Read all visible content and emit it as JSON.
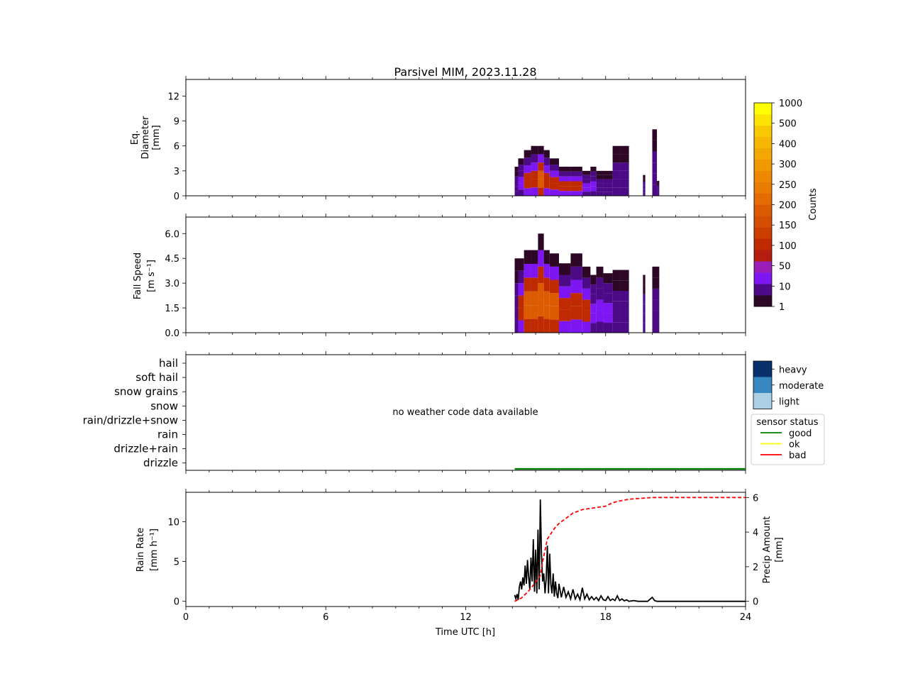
{
  "title": "Parsivel MIM, 2023.11.28",
  "no_data_text": "no weather code data available",
  "chart_data": [
    {
      "type": "heatmap",
      "ylabel": [
        "Eq.",
        "Diameter",
        "[mm]"
      ],
      "yticks": [
        "0",
        "3",
        "6",
        "9",
        "12"
      ],
      "ylim": [
        0,
        14
      ],
      "xlim": [
        0,
        24
      ],
      "columns": [
        {
          "start": 14.1,
          "end": 14.25,
          "top": 3.5,
          "level": 1
        },
        {
          "start": 14.25,
          "end": 14.5,
          "top": 4.5,
          "level": 2
        },
        {
          "start": 14.5,
          "end": 14.8,
          "top": 5.5,
          "level": 3
        },
        {
          "start": 14.8,
          "end": 15.1,
          "top": 6.0,
          "level": 3
        },
        {
          "start": 15.1,
          "end": 15.35,
          "top": 6.0,
          "level": 4
        },
        {
          "start": 15.35,
          "end": 15.6,
          "top": 5.5,
          "level": 3
        },
        {
          "start": 15.6,
          "end": 16.0,
          "top": 4.5,
          "level": 3
        },
        {
          "start": 16.0,
          "end": 16.5,
          "top": 3.5,
          "level": 3
        },
        {
          "start": 16.5,
          "end": 17.0,
          "top": 3.5,
          "level": 3
        },
        {
          "start": 17.0,
          "end": 17.35,
          "top": 3.0,
          "level": 2
        },
        {
          "start": 17.35,
          "end": 17.6,
          "top": 3.5,
          "level": 2
        },
        {
          "start": 17.6,
          "end": 17.9,
          "top": 3.0,
          "level": 1
        },
        {
          "start": 17.9,
          "end": 18.3,
          "top": 3.0,
          "level": 1
        },
        {
          "start": 18.3,
          "end": 18.6,
          "top": 6.0,
          "level": 1
        },
        {
          "start": 18.6,
          "end": 19.0,
          "top": 6.0,
          "level": 1
        },
        {
          "start": 19.6,
          "end": 19.7,
          "top": 2.5,
          "level": 1
        },
        {
          "start": 20.0,
          "end": 20.2,
          "top": 8.0,
          "level": 1
        },
        {
          "start": 20.2,
          "end": 20.3,
          "top": 1.8,
          "level": 1
        }
      ]
    },
    {
      "type": "heatmap",
      "ylabel": [
        "Fall Speed",
        "[m s⁻¹]"
      ],
      "yticks": [
        "0.0",
        "1.5",
        "3.0",
        "4.5",
        "6.0"
      ],
      "ylim": [
        0,
        7
      ],
      "xlim": [
        0,
        24
      ],
      "columns": [
        {
          "start": 14.1,
          "end": 14.25,
          "top": 4.5,
          "level": 1
        },
        {
          "start": 14.25,
          "end": 14.5,
          "top": 4.5,
          "level": 3
        },
        {
          "start": 14.5,
          "end": 14.8,
          "top": 5.0,
          "level": 4
        },
        {
          "start": 14.8,
          "end": 15.1,
          "top": 5.0,
          "level": 4
        },
        {
          "start": 15.1,
          "end": 15.35,
          "top": 6.0,
          "level": 5
        },
        {
          "start": 15.35,
          "end": 15.6,
          "top": 5.0,
          "level": 4
        },
        {
          "start": 15.6,
          "end": 16.0,
          "top": 4.8,
          "level": 4
        },
        {
          "start": 16.0,
          "end": 16.5,
          "top": 4.2,
          "level": 3
        },
        {
          "start": 16.5,
          "end": 17.0,
          "top": 4.8,
          "level": 3
        },
        {
          "start": 17.0,
          "end": 17.35,
          "top": 4.0,
          "level": 3
        },
        {
          "start": 17.35,
          "end": 17.6,
          "top": 3.5,
          "level": 2
        },
        {
          "start": 17.6,
          "end": 17.9,
          "top": 4.0,
          "level": 2
        },
        {
          "start": 17.9,
          "end": 18.3,
          "top": 3.6,
          "level": 2
        },
        {
          "start": 18.3,
          "end": 18.6,
          "top": 3.8,
          "level": 1
        },
        {
          "start": 18.6,
          "end": 19.0,
          "top": 3.8,
          "level": 1
        },
        {
          "start": 19.6,
          "end": 19.7,
          "top": 3.5,
          "level": 1
        },
        {
          "start": 20.0,
          "end": 20.3,
          "top": 4.0,
          "level": 1
        }
      ]
    },
    {
      "type": "line",
      "yticks": [
        "hail",
        "soft hail",
        "snow grains",
        "snow",
        "rain/drizzle+snow",
        "rain",
        "drizzle+rain",
        "drizzle"
      ],
      "xlim": [
        0,
        24
      ],
      "sensor_status": {
        "start": 14.1,
        "end": 24,
        "status": "good"
      },
      "intensity_legend": [
        "heavy",
        "moderate",
        "light"
      ],
      "intensity_colors": [
        "#08306b",
        "#3787c0",
        "#abd0e6"
      ],
      "status_legend": {
        "title": "sensor status",
        "items": [
          {
            "label": "good",
            "color": "#008000"
          },
          {
            "label": "ok",
            "color": "#ffff00"
          },
          {
            "label": "bad",
            "color": "#ff0000"
          }
        ]
      }
    },
    {
      "type": "line",
      "ylabel": [
        "Rain Rate",
        "[mm h⁻¹]"
      ],
      "y2label": [
        "Precip Amount",
        "[mm]"
      ],
      "xlabel": "Time UTC [h]",
      "xticks": [
        "0",
        "6",
        "12",
        "18",
        "24"
      ],
      "xlim": [
        0,
        24
      ],
      "ylim": [
        -0.65,
        13.7
      ],
      "y2lim": [
        -0.3,
        6.3
      ],
      "yticks": [
        "0",
        "5",
        "10"
      ],
      "y2ticks": [
        "0",
        "2",
        "4",
        "6"
      ],
      "series": [
        {
          "axis": "left",
          "color": "#000000",
          "style": "solid",
          "x": [
            14.1,
            14.15,
            14.2,
            14.25,
            14.3,
            14.35,
            14.4,
            14.45,
            14.5,
            14.55,
            14.6,
            14.65,
            14.7,
            14.75,
            14.8,
            14.85,
            14.9,
            14.95,
            15.0,
            15.05,
            15.1,
            15.15,
            15.2,
            15.25,
            15.3,
            15.35,
            15.4,
            15.45,
            15.5,
            15.55,
            15.6,
            15.65,
            15.7,
            15.75,
            15.8,
            15.85,
            15.9,
            15.95,
            16.0,
            16.1,
            16.2,
            16.3,
            16.4,
            16.5,
            16.6,
            16.7,
            16.8,
            16.9,
            17.0,
            17.1,
            17.2,
            17.3,
            17.4,
            17.5,
            17.6,
            17.7,
            17.8,
            17.9,
            18.0,
            18.1,
            18.2,
            18.3,
            18.4,
            18.5,
            18.6,
            18.7,
            18.8,
            18.9,
            19.0,
            19.2,
            19.4,
            19.6,
            19.8,
            20.0,
            20.1,
            20.2,
            20.3,
            20.5,
            21.0,
            22.0,
            23.0,
            24.0
          ],
          "values": [
            0.8,
            0.3,
            0.9,
            0.2,
            1.8,
            2.5,
            1.5,
            3.0,
            2.0,
            4.5,
            2.2,
            5.2,
            3.0,
            1.5,
            5.5,
            2.5,
            7.8,
            1.2,
            6.5,
            1.0,
            9.0,
            1.5,
            12.8,
            6.0,
            2.5,
            3.5,
            1.0,
            2.8,
            7.0,
            1.0,
            6.0,
            2.2,
            1.0,
            3.5,
            0.6,
            2.5,
            1.0,
            0.4,
            2.2,
            0.5,
            1.8,
            0.5,
            1.2,
            0.3,
            1.5,
            0.3,
            0.9,
            0.2,
            1.7,
            0.3,
            0.9,
            0.2,
            0.6,
            0.2,
            0.5,
            0.1,
            0.7,
            0.2,
            0.1,
            0.6,
            0.1,
            0.3,
            0.1,
            0.7,
            0.1,
            0.3,
            0.05,
            0.2,
            0.0,
            0.1,
            0.0,
            0.0,
            0.0,
            0.5,
            0.1,
            0.0,
            0.0,
            0.0,
            0.0,
            0.0,
            0.0,
            0.0
          ]
        },
        {
          "axis": "right",
          "color": "#ff0000",
          "style": "dashed",
          "x": [
            14.1,
            14.4,
            14.7,
            15.0,
            15.2,
            15.3,
            15.5,
            15.8,
            16.0,
            16.3,
            16.6,
            17.0,
            17.5,
            18.0,
            18.3,
            18.6,
            19.0,
            19.5,
            20.0,
            20.5,
            24.0
          ],
          "values": [
            0.0,
            0.2,
            0.6,
            1.1,
            1.5,
            2.3,
            3.6,
            4.2,
            4.5,
            4.8,
            5.1,
            5.3,
            5.4,
            5.5,
            5.7,
            5.8,
            5.9,
            5.95,
            6.0,
            6.0,
            6.0
          ]
        }
      ]
    }
  ],
  "colorbar": {
    "label": "Counts",
    "tick_labels": [
      "1",
      "10",
      "50",
      "100",
      "150",
      "200",
      "250",
      "300",
      "400",
      "500",
      "1000"
    ],
    "colors": [
      "#2d0726",
      "#4c0a86",
      "#7d16f2",
      "#9a1fb8",
      "#b31e10",
      "#c02a00",
      "#cc3e00",
      "#d44d00",
      "#dc5a00",
      "#e46b00",
      "#e87b00",
      "#ed8800",
      "#f09900",
      "#f2a800",
      "#f6b700",
      "#f8c800",
      "#fde400",
      "#ffff00"
    ]
  }
}
